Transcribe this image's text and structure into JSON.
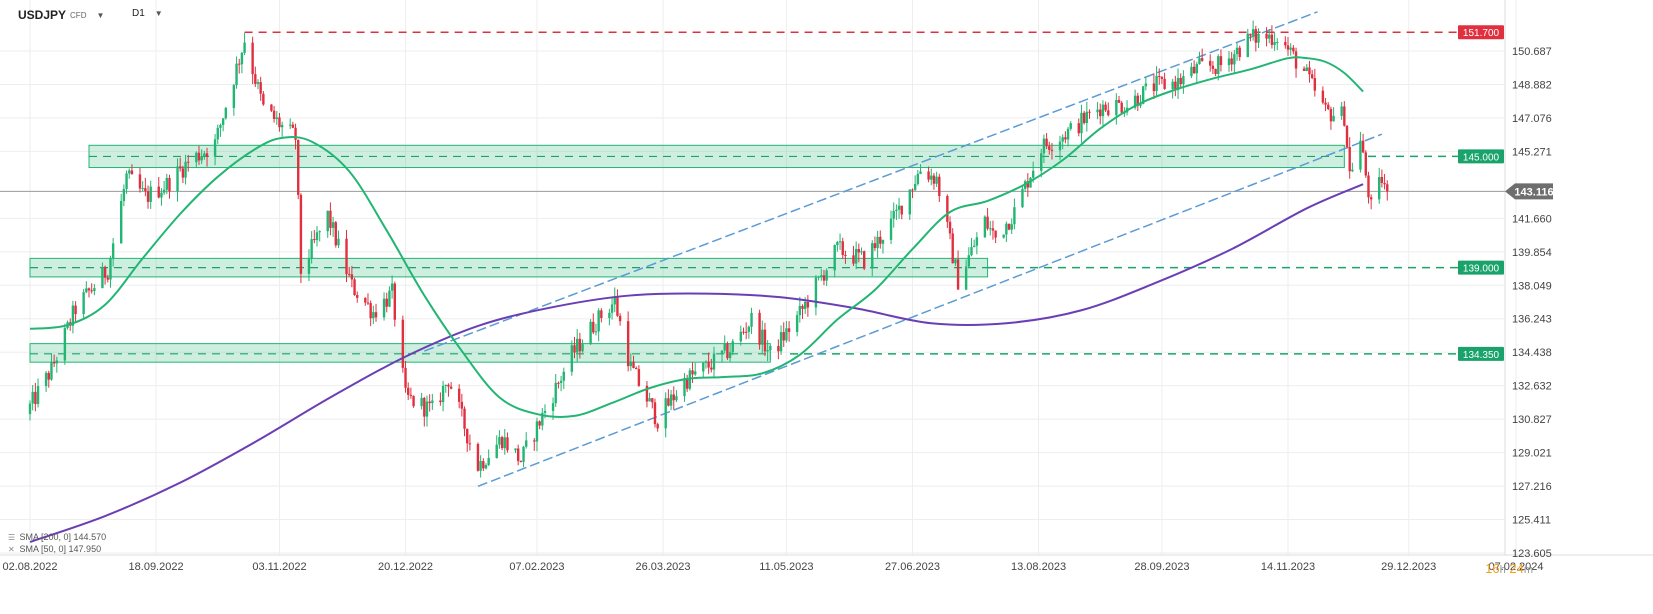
{
  "header": {
    "symbol": "USDJPY",
    "type": "CFD",
    "interval": "D1"
  },
  "legend": {
    "sma200": "SMA [200, 0] 144.570",
    "sma50": "SMA [50, 0] 147.950"
  },
  "timer": {
    "hours": "16",
    "h_unit": "h",
    "minutes": "24",
    "m_unit": "m"
  },
  "chart_data": {
    "type": "candlestick",
    "title": "",
    "ylim": [
      123.605,
      152.5
    ],
    "y_ticks": [
      150.687,
      148.882,
      147.076,
      145.271,
      141.66,
      139.854,
      138.049,
      136.243,
      134.438,
      132.632,
      130.827,
      129.021,
      127.216,
      125.411,
      123.605
    ],
    "x_ticks": [
      "02.08.2022",
      "18.09.2022",
      "03.11.2022",
      "20.12.2022",
      "07.02.2023",
      "26.03.2023",
      "11.05.2023",
      "27.06.2023",
      "13.08.2023",
      "28.09.2023",
      "14.11.2023",
      "29.12.2023",
      "07.02.2024"
    ],
    "current_price": "143.116",
    "colors": {
      "up": "#22b573",
      "down": "#e03040",
      "sma50": "#22b573",
      "sma200": "#6a3fb5",
      "zone": "#22b573",
      "channel": "#5b9bd5",
      "resistance": "#e03040"
    },
    "levels": [
      {
        "label": "151.700",
        "value": 151.7,
        "color": "#e03040"
      },
      {
        "label": "145.000",
        "value": 145.0,
        "color": "#19a36a"
      },
      {
        "label": "139.000",
        "value": 139.0,
        "color": "#19a36a"
      },
      {
        "label": "134.350",
        "value": 134.35,
        "color": "#19a36a"
      }
    ],
    "zones": [
      {
        "from": "2022-08-24",
        "to": "2023-12-05",
        "low": 144.4,
        "high": 145.6
      },
      {
        "from": "2022-08-02",
        "to": "2023-07-25",
        "low": 138.5,
        "high": 139.5
      },
      {
        "from": "2022-08-02",
        "to": "2023-05-05",
        "low": 133.9,
        "high": 134.9
      }
    ],
    "channel": {
      "lower": [
        [
          "2023-01-16",
          127.2
        ],
        [
          "2023-12-19",
          146.2
        ]
      ],
      "upper": [
        [
          "2022-12-27",
          134.5
        ],
        [
          "2023-11-25",
          152.8
        ]
      ]
    },
    "resistance_line": {
      "from": "2022-10-21",
      "value": 151.7
    },
    "sma50": [
      [
        "2022-08-02",
        135.7
      ],
      [
        "2022-08-16",
        135.9
      ],
      [
        "2022-08-30",
        137.0
      ],
      [
        "2022-09-13",
        139.5
      ],
      [
        "2022-09-27",
        141.9
      ],
      [
        "2022-10-11",
        143.9
      ],
      [
        "2022-10-25",
        145.4
      ],
      [
        "2022-11-04",
        146.0
      ],
      [
        "2022-11-15",
        145.8
      ],
      [
        "2022-11-29",
        144.2
      ],
      [
        "2022-12-13",
        141.0
      ],
      [
        "2022-12-27",
        137.5
      ],
      [
        "2023-01-10",
        134.5
      ],
      [
        "2023-01-24",
        132.0
      ],
      [
        "2023-02-07",
        131.1
      ],
      [
        "2023-02-21",
        131.0
      ],
      [
        "2023-03-07",
        131.7
      ],
      [
        "2023-03-21",
        132.5
      ],
      [
        "2023-04-04",
        133.0
      ],
      [
        "2023-04-18",
        133.1
      ],
      [
        "2023-05-02",
        133.3
      ],
      [
        "2023-05-16",
        134.3
      ],
      [
        "2023-05-30",
        136.2
      ],
      [
        "2023-06-13",
        137.8
      ],
      [
        "2023-06-27",
        140.0
      ],
      [
        "2023-07-11",
        142.0
      ],
      [
        "2023-07-25",
        142.6
      ],
      [
        "2023-08-08",
        143.5
      ],
      [
        "2023-08-22",
        144.8
      ],
      [
        "2023-09-05",
        146.5
      ],
      [
        "2023-09-19",
        147.8
      ],
      [
        "2023-10-03",
        148.6
      ],
      [
        "2023-10-17",
        149.2
      ],
      [
        "2023-10-31",
        149.7
      ],
      [
        "2023-11-14",
        150.3
      ],
      [
        "2023-11-21",
        150.3
      ],
      [
        "2023-11-28",
        150.1
      ],
      [
        "2023-12-05",
        149.5
      ],
      [
        "2023-12-12",
        148.5
      ]
    ],
    "sma200": [
      [
        "2022-08-02",
        124.2
      ],
      [
        "2022-08-30",
        125.6
      ],
      [
        "2022-09-27",
        127.4
      ],
      [
        "2022-10-25",
        129.6
      ],
      [
        "2022-11-22",
        132.0
      ],
      [
        "2022-12-20",
        134.2
      ],
      [
        "2023-01-17",
        135.9
      ],
      [
        "2023-02-14",
        136.9
      ],
      [
        "2023-03-14",
        137.5
      ],
      [
        "2023-04-11",
        137.6
      ],
      [
        "2023-05-09",
        137.4
      ],
      [
        "2023-06-06",
        136.8
      ],
      [
        "2023-07-04",
        136.0
      ],
      [
        "2023-08-01",
        136.0
      ],
      [
        "2023-08-29",
        136.7
      ],
      [
        "2023-09-26",
        138.2
      ],
      [
        "2023-10-24",
        140.0
      ],
      [
        "2023-11-21",
        142.2
      ],
      [
        "2023-12-12",
        143.5
      ]
    ],
    "anchors": [
      [
        "2022-08-02",
        131.5
      ],
      [
        "2022-08-10",
        133.5
      ],
      [
        "2022-08-19",
        136.8
      ],
      [
        "2022-08-31",
        138.9
      ],
      [
        "2022-09-07",
        143.9
      ],
      [
        "2022-09-14",
        142.8
      ],
      [
        "2022-09-22",
        143.5
      ],
      [
        "2022-09-30",
        144.7
      ],
      [
        "2022-10-10",
        145.7
      ],
      [
        "2022-10-21",
        151.3
      ],
      [
        "2022-10-28",
        147.6
      ],
      [
        "2022-11-04",
        146.6
      ],
      [
        "2022-11-09",
        146.0
      ],
      [
        "2022-11-11",
        138.8
      ],
      [
        "2022-11-21",
        141.8
      ],
      [
        "2022-11-30",
        138.0
      ],
      [
        "2022-12-08",
        136.6
      ],
      [
        "2022-12-15",
        137.6
      ],
      [
        "2022-12-20",
        132.0
      ],
      [
        "2022-12-30",
        131.3
      ],
      [
        "2023-01-05",
        133.0
      ],
      [
        "2023-01-16",
        128.3
      ],
      [
        "2023-01-25",
        129.8
      ],
      [
        "2023-02-01",
        128.6
      ],
      [
        "2023-02-10",
        131.3
      ],
      [
        "2023-02-20",
        134.3
      ],
      [
        "2023-03-01",
        136.1
      ],
      [
        "2023-03-08",
        137.2
      ],
      [
        "2023-03-14",
        133.6
      ],
      [
        "2023-03-24",
        130.8
      ],
      [
        "2023-04-03",
        132.9
      ],
      [
        "2023-04-12",
        133.7
      ],
      [
        "2023-04-20",
        134.6
      ],
      [
        "2023-04-28",
        136.2
      ],
      [
        "2023-05-05",
        134.3
      ],
      [
        "2023-05-16",
        136.5
      ],
      [
        "2023-05-30",
        140.0
      ],
      [
        "2023-06-09",
        139.4
      ],
      [
        "2023-06-20",
        141.6
      ],
      [
        "2023-06-30",
        144.3
      ],
      [
        "2023-07-06",
        143.8
      ],
      [
        "2023-07-14",
        138.3
      ],
      [
        "2023-07-24",
        141.5
      ],
      [
        "2023-07-28",
        140.6
      ],
      [
        "2023-08-04",
        142.0
      ],
      [
        "2023-08-14",
        145.5
      ],
      [
        "2023-08-25",
        146.4
      ],
      [
        "2023-09-05",
        147.7
      ],
      [
        "2023-09-15",
        147.8
      ],
      [
        "2023-09-25",
        148.8
      ],
      [
        "2023-10-04",
        149.0
      ],
      [
        "2023-10-12",
        149.8
      ],
      [
        "2023-10-20",
        149.9
      ],
      [
        "2023-10-31",
        151.4
      ],
      [
        "2023-11-10",
        151.5
      ],
      [
        "2023-11-20",
        149.6
      ],
      [
        "2023-11-28",
        147.4
      ],
      [
        "2023-12-05",
        147.2
      ],
      [
        "2023-12-07",
        144.1
      ],
      [
        "2023-12-11",
        145.8
      ],
      [
        "2023-12-15",
        142.2
      ],
      [
        "2023-12-19",
        143.8
      ],
      [
        "2023-12-21",
        143.116
      ]
    ]
  }
}
